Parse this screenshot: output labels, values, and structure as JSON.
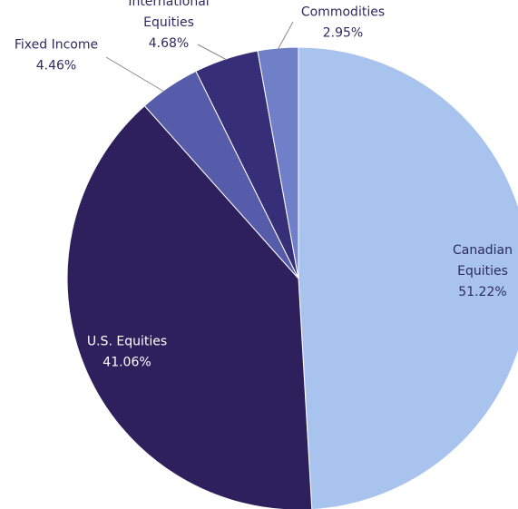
{
  "chart_data": {
    "type": "pie",
    "title": "",
    "slices": [
      {
        "label": "Canadian Equities",
        "label_lines": [
          "Canadian",
          "Equities"
        ],
        "value": 51.22,
        "value_label": "51.22%",
        "color": "#A8C4EE",
        "label_color": "#2E2A60"
      },
      {
        "label": "U.S. Equities",
        "label_lines": [
          "U.S. Equities"
        ],
        "value": 41.06,
        "value_label": "41.06%",
        "color": "#2E1F5D",
        "label_color": "#FFFFFF"
      },
      {
        "label": "Fixed Income",
        "label_lines": [
          "Fixed Income"
        ],
        "value": 4.46,
        "value_label": "4.46%",
        "color": "#565CA9",
        "label_color": "#2E2A60"
      },
      {
        "label": "International Equities",
        "label_lines": [
          "International",
          "Equities"
        ],
        "value": 4.68,
        "value_label": "4.68%",
        "color": "#362E76",
        "label_color": "#2E2A60"
      },
      {
        "label": "Commodities",
        "label_lines": [
          "Commodities"
        ],
        "value": 2.95,
        "value_label": "2.95%",
        "color": "#6F80C8",
        "label_color": "#2E2A60"
      }
    ]
  }
}
